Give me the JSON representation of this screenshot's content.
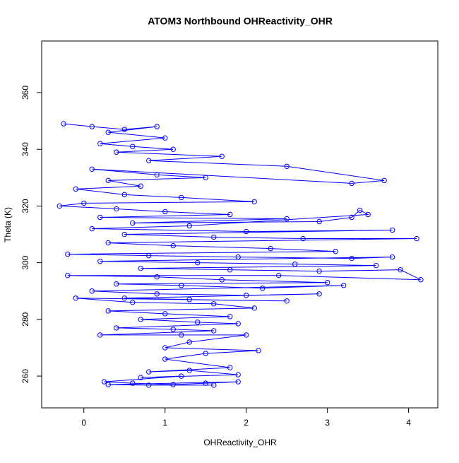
{
  "chart_data": {
    "type": "line",
    "title": "ATOM3 Northbound OHReactivity_OHR",
    "x_label": "OHReactivity_OHR",
    "y_label": "Theta (K)",
    "color": "#0000ff",
    "markers": "open-circle",
    "xlim": [
      -0.52,
      4.36
    ],
    "ylim": [
      248.8,
      378.2
    ],
    "xticks": [
      0,
      1,
      2,
      3,
      4
    ],
    "yticks": [
      260,
      280,
      300,
      320,
      340,
      360
    ],
    "x": [
      -0.25,
      0.1,
      0.5,
      0.9,
      0.3,
      1.0,
      0.2,
      0.6,
      1.1,
      0.4,
      1.7,
      0.8,
      2.5,
      3.7,
      3.3,
      0.1,
      0.9,
      1.5,
      0.3,
      0.7,
      -0.1,
      0.5,
      1.2,
      2.1,
      0.0,
      -0.3,
      0.4,
      1.0,
      1.8,
      0.2,
      2.5,
      0.6,
      2.9,
      3.3,
      3.4,
      3.5,
      1.3,
      0.1,
      2.0,
      3.8,
      0.5,
      1.6,
      2.7,
      4.1,
      0.3,
      1.1,
      2.3,
      3.1,
      -0.2,
      0.8,
      1.9,
      3.3,
      3.8,
      0.2,
      1.4,
      2.6,
      3.6,
      0.7,
      1.8,
      2.9,
      3.9,
      4.15,
      2.4,
      -0.2,
      0.9,
      1.7,
      3.0,
      0.4,
      1.2,
      2.2,
      3.2,
      0.1,
      0.9,
      2.0,
      2.9,
      0.5,
      1.3,
      2.5,
      -0.1,
      0.6,
      1.6,
      2.1,
      0.3,
      1.0,
      1.8,
      0.7,
      1.4,
      1.9,
      0.4,
      1.1,
      1.6,
      0.2,
      1.2,
      2.0,
      1.3,
      1.0,
      2.15,
      1.5,
      1.0,
      1.8,
      0.8,
      1.3,
      1.9,
      0.7,
      1.2,
      0.25,
      0.6,
      1.1,
      1.5,
      1.9,
      0.3,
      0.8,
      1.6
    ],
    "values": [
      349,
      348,
      347,
      348,
      346,
      344,
      342,
      341,
      340,
      339,
      337.5,
      336,
      334,
      329,
      328,
      333,
      331,
      330,
      329,
      327,
      326,
      324,
      323,
      321.5,
      321,
      320,
      319,
      318,
      317,
      316,
      315.5,
      314,
      314.5,
      316,
      318.5,
      317,
      313,
      312,
      311,
      311.5,
      310,
      309,
      308.5,
      308.5,
      307,
      306,
      305,
      304,
      303,
      302.5,
      302,
      301.5,
      302,
      300.5,
      300,
      299.5,
      299,
      298,
      297.5,
      297,
      297.5,
      294,
      295.5,
      295.5,
      295,
      294,
      293,
      292.5,
      292,
      291,
      292,
      290,
      289,
      288.5,
      289,
      287.5,
      287,
      286.5,
      287.5,
      286,
      285.5,
      284,
      283,
      282,
      281,
      280,
      279,
      278.5,
      277,
      276.5,
      276,
      274.5,
      274.5,
      274.5,
      272,
      270,
      269,
      268,
      266,
      263,
      261.5,
      262,
      260.5,
      259.5,
      260,
      258,
      257.5,
      257,
      257.5,
      258,
      257,
      256.8,
      256.8
    ]
  }
}
